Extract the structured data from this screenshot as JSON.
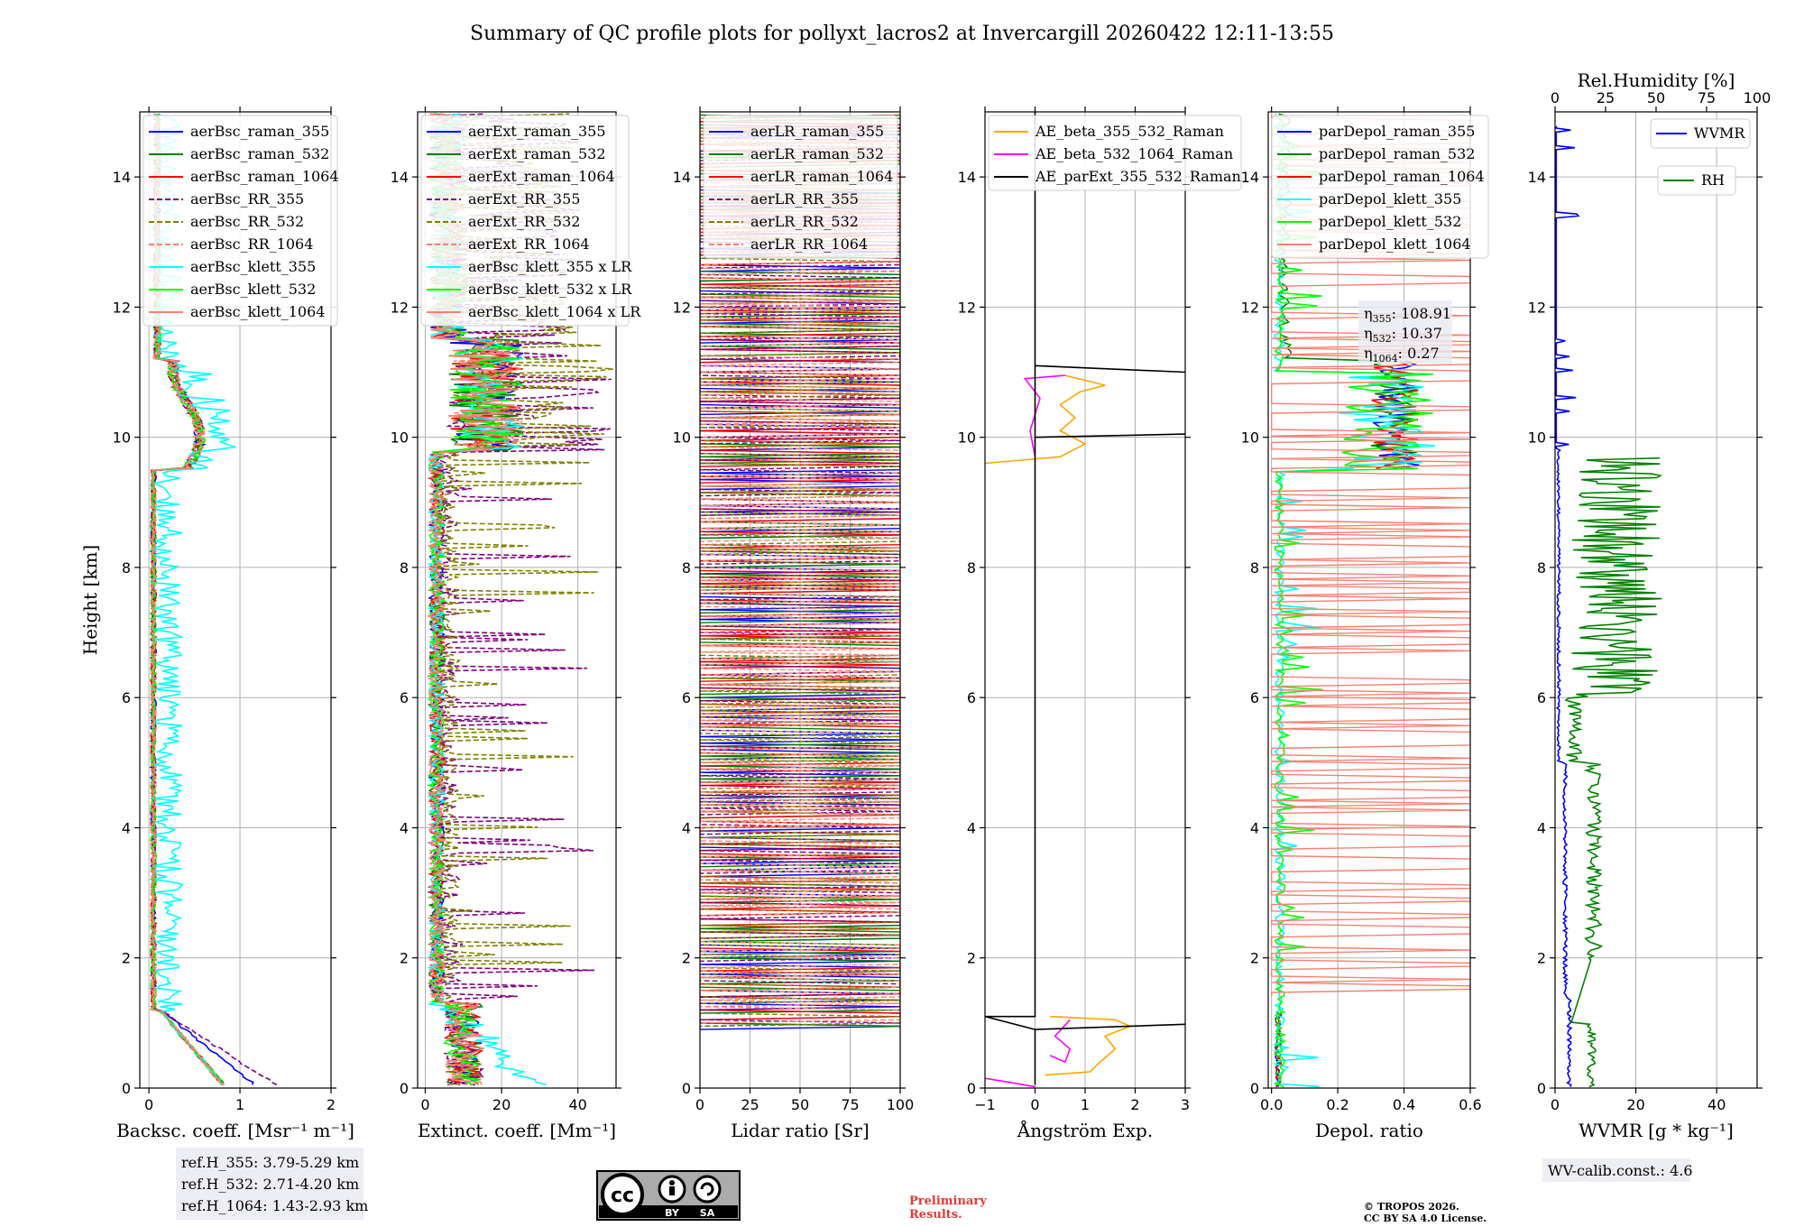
{
  "title": "Summary of QC profile plots for pollyxt_lacros2 at Invercargill 20260422 12:11-13:55",
  "colors": {
    "blue": "#0000ff",
    "green": "#008000",
    "red": "#ff0000",
    "purple": "#800080",
    "olive": "#808000",
    "salmon": "#fa8072",
    "cyan": "#00ffff",
    "lime": "#00ff00",
    "orange": "#ffa500",
    "magenta": "#ff00ff",
    "black": "#000000"
  },
  "chart_data": [
    {
      "type": "line",
      "ylabel": "Height [km]",
      "xlabel": "Backsc. coeff. [Msr⁻¹ m⁻¹]",
      "xlim": [
        -0.1,
        2
      ],
      "ylim": [
        0,
        15
      ],
      "xticks": [
        "0",
        "1",
        "2"
      ],
      "yticks": [
        "0",
        "2",
        "4",
        "6",
        "8",
        "10",
        "12",
        "14"
      ],
      "grid": true,
      "legend_position": "top-left",
      "series": [
        {
          "name": "aerBsc_raman_355",
          "color": "blue",
          "dash": false
        },
        {
          "name": "aerBsc_raman_532",
          "color": "green",
          "dash": false
        },
        {
          "name": "aerBsc_raman_1064",
          "color": "red",
          "dash": false
        },
        {
          "name": "aerBsc_RR_355",
          "color": "purple",
          "dash": true
        },
        {
          "name": "aerBsc_RR_532",
          "color": "olive",
          "dash": true
        },
        {
          "name": "aerBsc_RR_1064",
          "color": "salmon",
          "dash": true
        },
        {
          "name": "aerBsc_klett_355",
          "color": "cyan",
          "dash": false
        },
        {
          "name": "aerBsc_klett_532",
          "color": "lime",
          "dash": false
        },
        {
          "name": "aerBsc_klett_1064",
          "color": "salmon",
          "dash": false
        }
      ],
      "refbox": [
        "ref.H_355: 3.79-5.29 km",
        "ref.H_532: 2.71-4.20 km",
        "ref.H_1064: 1.43-2.93 km"
      ]
    },
    {
      "type": "line",
      "xlabel": "Extinct. coeff. [Mm⁻¹]",
      "xlim": [
        -2,
        50
      ],
      "ylim": [
        0,
        15
      ],
      "xticks": [
        "0",
        "20",
        "40"
      ],
      "yticks": [
        "0",
        "2",
        "4",
        "6",
        "8",
        "10",
        "12",
        "14"
      ],
      "grid": true,
      "legend_position": "top-left",
      "series": [
        {
          "name": "aerExt_raman_355",
          "color": "blue",
          "dash": false
        },
        {
          "name": "aerExt_raman_532",
          "color": "green",
          "dash": false
        },
        {
          "name": "aerExt_raman_1064",
          "color": "red",
          "dash": false
        },
        {
          "name": "aerExt_RR_355",
          "color": "purple",
          "dash": true
        },
        {
          "name": "aerExt_RR_532",
          "color": "olive",
          "dash": true
        },
        {
          "name": "aerExt_RR_1064",
          "color": "salmon",
          "dash": true
        },
        {
          "name": "aerBsc_klett_355 x LR",
          "color": "cyan",
          "dash": false
        },
        {
          "name": "aerBsc_klett_532 x LR",
          "color": "lime",
          "dash": false
        },
        {
          "name": "aerBsc_klett_1064 x LR",
          "color": "salmon",
          "dash": false
        }
      ]
    },
    {
      "type": "line",
      "xlabel": "Lidar ratio [Sr]",
      "xlim": [
        0,
        100
      ],
      "ylim": [
        0,
        15
      ],
      "xticks": [
        "0",
        "25",
        "50",
        "75",
        "100"
      ],
      "yticks": [
        "0",
        "2",
        "4",
        "6",
        "8",
        "10",
        "12",
        "14"
      ],
      "grid": true,
      "legend_position": "top-left",
      "series": [
        {
          "name": "aerLR_raman_355",
          "color": "blue",
          "dash": false
        },
        {
          "name": "aerLR_raman_532",
          "color": "green",
          "dash": false
        },
        {
          "name": "aerLR_raman_1064",
          "color": "red",
          "dash": false
        },
        {
          "name": "aerLR_RR_355",
          "color": "purple",
          "dash": true
        },
        {
          "name": "aerLR_RR_532",
          "color": "olive",
          "dash": true
        },
        {
          "name": "aerLR_RR_1064",
          "color": "salmon",
          "dash": true
        }
      ]
    },
    {
      "type": "line",
      "xlabel": "Ångström Exp.",
      "xlim": [
        -1,
        3
      ],
      "ylim": [
        0,
        15
      ],
      "xticks": [
        "−1",
        "0",
        "1",
        "2",
        "3"
      ],
      "yticks": [
        "0",
        "2",
        "4",
        "6",
        "8",
        "10",
        "12",
        "14"
      ],
      "grid": true,
      "legend_position": "top-left",
      "series": [
        {
          "name": "AE_beta_355_532_Raman",
          "color": "orange",
          "dash": false
        },
        {
          "name": "AE_beta_532_1064_Raman",
          "color": "magenta",
          "dash": false
        },
        {
          "name": "AE_parExt_355_532_Raman",
          "color": "black",
          "dash": false
        }
      ]
    },
    {
      "type": "line",
      "xlabel": "Depol. ratio",
      "xlim": [
        -0.01,
        0.6
      ],
      "ylim": [
        0,
        15
      ],
      "xticks": [
        "0.0",
        "0.2",
        "0.4",
        "0.6"
      ],
      "yticks": [
        "0",
        "2",
        "4",
        "6",
        "8",
        "10",
        "12",
        "14"
      ],
      "grid": true,
      "legend_position": "top-left",
      "series": [
        {
          "name": "parDepol_raman_355",
          "color": "blue",
          "dash": false
        },
        {
          "name": "parDepol_raman_532",
          "color": "green",
          "dash": false
        },
        {
          "name": "parDepol_raman_1064",
          "color": "red",
          "dash": false
        },
        {
          "name": "parDepol_klett_355",
          "color": "cyan",
          "dash": false
        },
        {
          "name": "parDepol_klett_532",
          "color": "lime",
          "dash": false
        },
        {
          "name": "parDepol_klett_1064",
          "color": "salmon",
          "dash": false
        }
      ],
      "eta": [
        {
          "label": "η",
          "sub": "355",
          "value": "108.91"
        },
        {
          "label": "η",
          "sub": "532",
          "value": "10.37"
        },
        {
          "label": "η",
          "sub": "1064",
          "value": "0.27"
        }
      ]
    },
    {
      "type": "line",
      "xlabel": "WVMR [g * kg⁻¹]",
      "x2label": "Rel.Humidity [%]",
      "xlim": [
        0,
        50
      ],
      "x2lim": [
        0,
        100
      ],
      "ylim": [
        0,
        15
      ],
      "xticks": [
        "0",
        "20",
        "40"
      ],
      "x2ticks": [
        "0",
        "25",
        "50",
        "75",
        "100"
      ],
      "yticks": [
        "0",
        "2",
        "4",
        "6",
        "8",
        "10",
        "12",
        "14"
      ],
      "grid": true,
      "series": [
        {
          "name": "WVMR",
          "color": "blue",
          "dash": false
        },
        {
          "name": "RH",
          "color": "green",
          "dash": false
        }
      ],
      "calib": "WV-calib.const.: 4.6"
    }
  ],
  "footer": {
    "cc_by": "BY",
    "cc_sa": "SA",
    "cc_symbol": "cc",
    "preliminary_line1": "Preliminary",
    "preliminary_line2": "Results.",
    "copyright_line1": "© TROPOS 2026.",
    "copyright_line2": "CC BY SA 4.0 License."
  }
}
